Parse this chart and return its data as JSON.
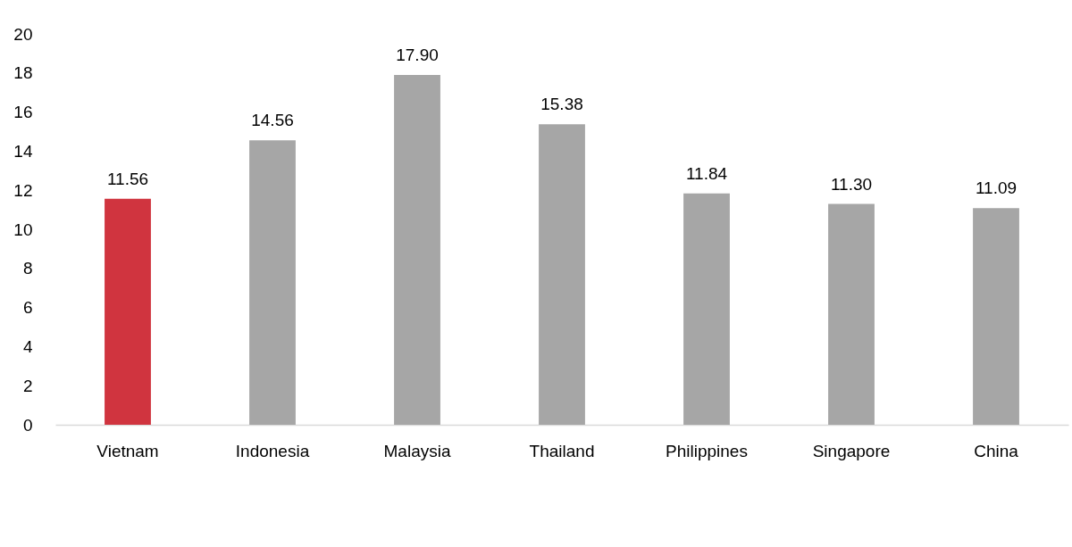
{
  "chart_data": {
    "type": "bar",
    "categories": [
      "Vietnam",
      "Indonesia",
      "Malaysia",
      "Thailand",
      "Philippines",
      "Singapore",
      "China"
    ],
    "values": [
      11.56,
      14.56,
      17.9,
      15.38,
      11.84,
      11.3,
      11.09
    ],
    "value_labels": [
      "11.56",
      "14.56",
      "17.90",
      "15.38",
      "11.84",
      "11.30",
      "11.09"
    ],
    "colors": [
      "#d0343f",
      "#a6a6a6",
      "#a6a6a6",
      "#a6a6a6",
      "#a6a6a6",
      "#a6a6a6",
      "#a6a6a6"
    ],
    "ylim": [
      0,
      20
    ],
    "yticks": [
      0,
      2,
      4,
      6,
      8,
      10,
      12,
      14,
      16,
      18,
      20
    ]
  }
}
